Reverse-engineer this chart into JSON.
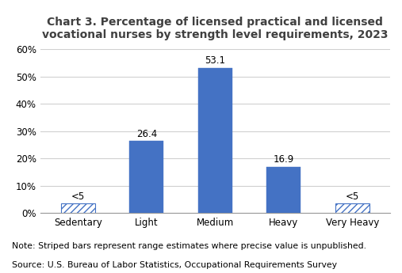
{
  "title": "Chart 3. Percentage of licensed practical and licensed\nvocational nurses by strength level requirements, 2023",
  "categories": [
    "Sedentary",
    "Light",
    "Medium",
    "Heavy",
    "Very Heavy"
  ],
  "values": [
    3.5,
    26.4,
    53.1,
    16.9,
    3.5
  ],
  "labels": [
    "<5",
    "26.4",
    "53.1",
    "16.9",
    "<5"
  ],
  "striped": [
    true,
    false,
    false,
    false,
    true
  ],
  "bar_color": "#4472C4",
  "stripe_face_color": "#ffffff",
  "ylim": [
    0,
    60
  ],
  "yticks": [
    0,
    10,
    20,
    30,
    40,
    50,
    60
  ],
  "ytick_labels": [
    "0%",
    "10%",
    "20%",
    "30%",
    "40%",
    "50%",
    "60%"
  ],
  "note_line1": "Note: Striped bars represent range estimates where precise value is unpublished.",
  "note_line2": "Source: U.S. Bureau of Labor Statistics, Occupational Requirements Survey",
  "background_color": "#ffffff",
  "grid_color": "#d0d0d0",
  "title_fontsize": 10,
  "title_color": "#404040",
  "label_fontsize": 8.5,
  "tick_fontsize": 8.5,
  "note_fontsize": 7.8,
  "bar_width": 0.5
}
